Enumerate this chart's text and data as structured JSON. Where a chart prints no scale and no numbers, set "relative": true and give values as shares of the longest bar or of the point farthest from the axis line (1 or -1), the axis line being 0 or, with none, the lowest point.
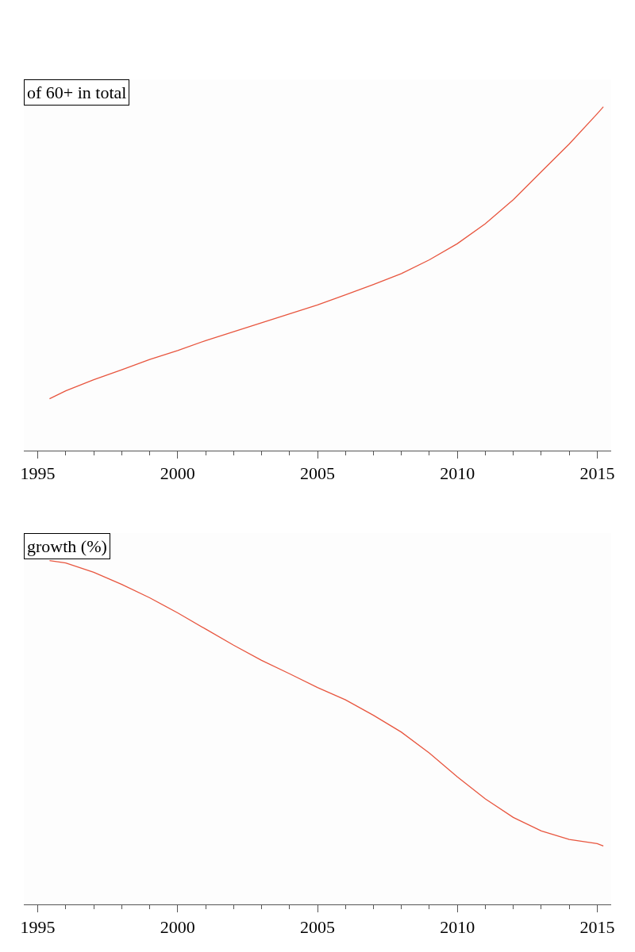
{
  "chart_data": [
    {
      "type": "line",
      "title": "of 60+ in total",
      "relative": true,
      "x": [
        1995.42,
        1996,
        1997,
        1998,
        1999,
        2000,
        2001,
        2002,
        2003,
        2004,
        2005,
        2006,
        2007,
        2008,
        2009,
        2010,
        2011,
        2012,
        2013,
        2014,
        2015,
        2015.22
      ],
      "series": [
        {
          "color": "#e8563f",
          "values": [
            0.151,
            0.174,
            0.206,
            0.235,
            0.265,
            0.291,
            0.32,
            0.346,
            0.372,
            0.398,
            0.424,
            0.453,
            0.483,
            0.515,
            0.555,
            0.602,
            0.66,
            0.73,
            0.811,
            0.892,
            0.98,
            1.0
          ]
        }
      ],
      "xlim": [
        1994.5,
        2015.5
      ],
      "xticks": [
        1995,
        2000,
        2005,
        2010,
        2015
      ],
      "tick_labels": "x"
    },
    {
      "type": "line",
      "title": "growth (%)",
      "relative": true,
      "x": [
        1995.42,
        1996,
        1997,
        1998,
        1999,
        2000,
        2001,
        2002,
        2003,
        2004,
        2005,
        2006,
        2007,
        2008,
        2009,
        2010,
        2011,
        2012,
        2013,
        2014,
        2015,
        2015.22
      ],
      "series": [
        {
          "color": "#e8563f",
          "values": [
            1.0,
            0.993,
            0.966,
            0.931,
            0.892,
            0.848,
            0.801,
            0.754,
            0.71,
            0.671,
            0.631,
            0.595,
            0.55,
            0.501,
            0.44,
            0.371,
            0.307,
            0.253,
            0.214,
            0.189,
            0.177,
            0.17
          ]
        }
      ],
      "xlim": [
        1994.5,
        2015.5
      ],
      "xticks": [
        1995,
        2000,
        2005,
        2010,
        2015
      ],
      "tick_labels": "x"
    }
  ]
}
